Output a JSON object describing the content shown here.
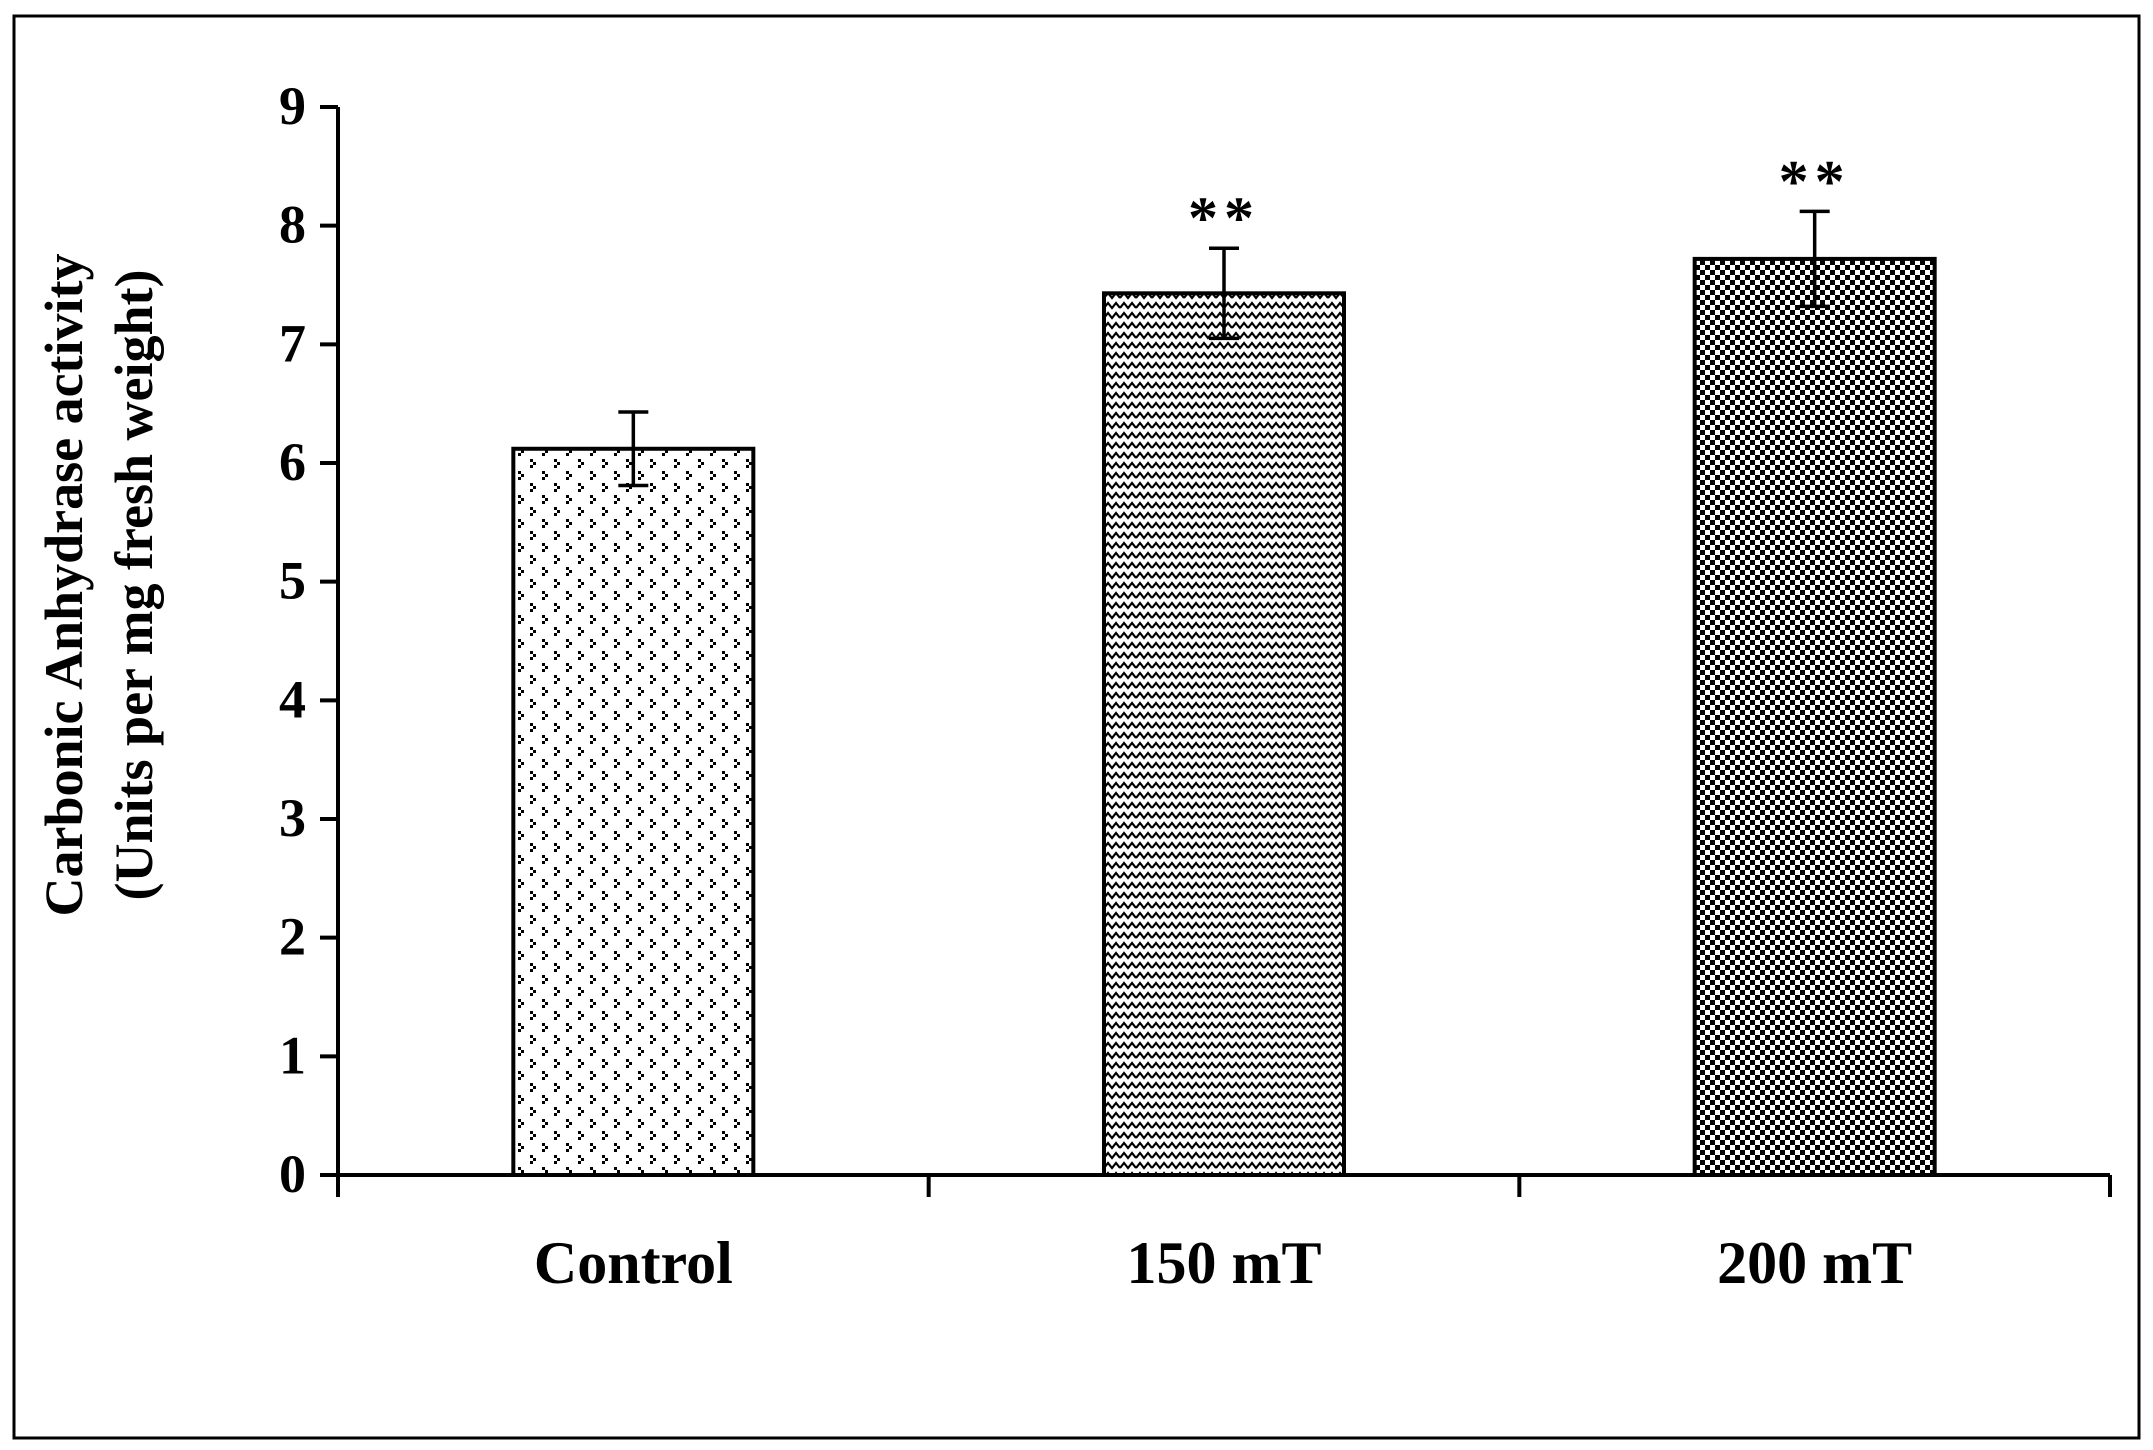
{
  "chart_data": {
    "type": "bar",
    "title": "",
    "xlabel": "",
    "ylabel": [
      "Carbonic Anhydrase activity",
      "(Units per mg fresh weight)"
    ],
    "categories": [
      "Control",
      "150 mT",
      "200 mT"
    ],
    "values": [
      6.12,
      7.43,
      7.72
    ],
    "errors": [
      0.31,
      0.38,
      0.4
    ],
    "significance": [
      "",
      "**",
      "**"
    ],
    "ylim": [
      0,
      9
    ],
    "yticks": [
      0,
      1,
      2,
      3,
      4,
      5,
      6,
      7,
      8,
      9
    ],
    "ytick_labels": [
      "0",
      "1",
      "2",
      "3",
      "4",
      "5",
      "6",
      "7",
      "8",
      "9"
    ],
    "patterns": [
      "sparse-dots",
      "zigzag",
      "checker"
    ],
    "grid": false,
    "legend": "none",
    "colors": {
      "ink": "#000000",
      "background": "#ffffff"
    }
  }
}
